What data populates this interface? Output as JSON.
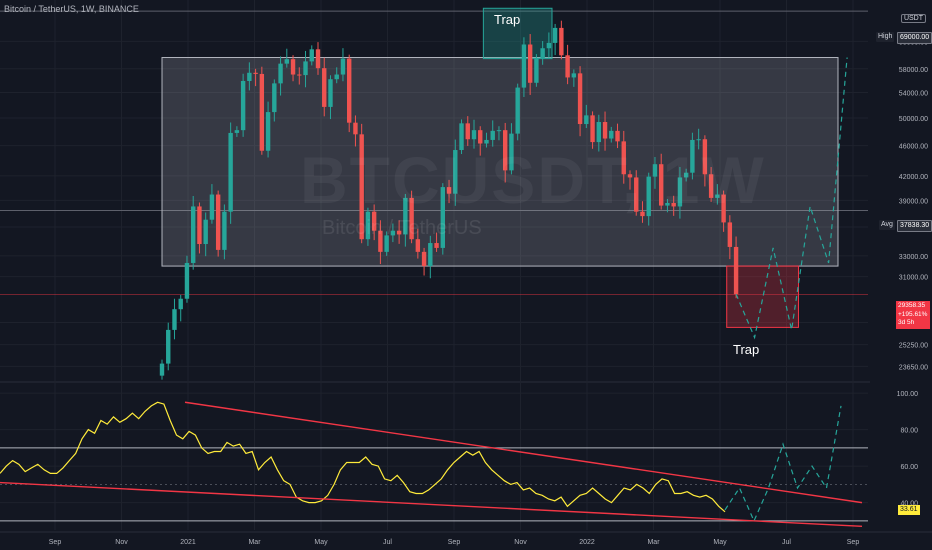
{
  "header": {
    "title": "Bitcoin / TetherUS, 1W, BINANCE",
    "quote_currency": "USDT"
  },
  "watermark": {
    "symbol": "BTCUSDT, 1W",
    "name": "Bitcoin / TetherUS"
  },
  "annotations": {
    "trap_top": "Trap",
    "trap_bottom": "Trap"
  },
  "tags": {
    "high_label": "High",
    "high_value": "69000.00",
    "avg_label": "Avg",
    "avg_value": "37838.30",
    "last_price": "29358.35",
    "change_pct": "+195.61%",
    "countdown": "3d 5h",
    "rsi_value": "33.61"
  },
  "colors": {
    "up": "#26a69a",
    "down": "#ef5350",
    "rsi": "#ffeb3b",
    "trend": "#f23645",
    "background": "#131722",
    "projection": "#26a69a"
  },
  "chart_data": [
    {
      "type": "candlestick",
      "title": "Bitcoin / TetherUS, 1W, BINANCE",
      "x_ticks": [
        "Sep",
        "Nov",
        "2021",
        "Mar",
        "May",
        "Jul",
        "Sep",
        "Nov",
        "2022",
        "Mar",
        "May",
        "Jul",
        "Sep"
      ],
      "price_ticks": [
        63000,
        58000,
        54000,
        50000,
        46000,
        42000,
        39000,
        36000,
        33000,
        31000,
        27000,
        25250,
        23650
      ],
      "ylim": [
        22700,
        70500
      ],
      "high": 69000,
      "average": 37838.3,
      "last_price": 29358.35,
      "close_values": [
        23850,
        26400,
        28100,
        29000,
        32300,
        38300,
        34200,
        36800,
        39700,
        33600,
        37700,
        47800,
        48200,
        55900,
        57300,
        57100,
        45300,
        50900,
        55500,
        58900,
        59700,
        57000,
        56900,
        59300,
        61500,
        58100,
        51700,
        56200,
        57000,
        59800,
        49300,
        47600,
        34700,
        37700,
        35600,
        33400,
        35100,
        35600,
        35200,
        39300,
        34700,
        33400,
        32000,
        34300,
        33800,
        40600,
        39800,
        45400,
        49200,
        46900,
        48200,
        46300,
        46800,
        48100,
        48200,
        42700,
        47700,
        54800,
        62400,
        55600,
        59900,
        61700,
        62700,
        65600,
        60400,
        56500,
        57200,
        49100,
        50400,
        46500,
        49400,
        47000,
        48100,
        46600,
        42200,
        41800,
        37700,
        37200,
        41900,
        43500,
        38400,
        38700,
        38300,
        41800,
        42400,
        46800,
        46900,
        42200,
        39300,
        39700,
        36500,
        33900,
        29400
      ],
      "range_box": {
        "price_low": 32000,
        "price_high": 60000
      },
      "trap_top_box": {
        "price_low": 59800,
        "price_high": 69600
      },
      "trap_bottom_box": {
        "price_low": 26600,
        "price_high": 32000
      },
      "projection_path": [
        29400,
        25800,
        33800,
        26400,
        38300,
        32300,
        60000
      ]
    },
    {
      "type": "line",
      "title": "RSI",
      "name": "RSI",
      "y_ticks": [
        100,
        80,
        60,
        40
      ],
      "levels": [
        70,
        30
      ],
      "ylim": [
        25,
        105
      ],
      "last_value": 33.61,
      "values": [
        56,
        60,
        63,
        61,
        57,
        59,
        61,
        58,
        56,
        56,
        59,
        63,
        67,
        75,
        80,
        78,
        85,
        83,
        87,
        84,
        86,
        89,
        86,
        90,
        93,
        95,
        94,
        85,
        77,
        75,
        79,
        77,
        70,
        67,
        68,
        68,
        73,
        71,
        72,
        67,
        68,
        58,
        62,
        65,
        58,
        52,
        50,
        43,
        41,
        40,
        40,
        41,
        44,
        50,
        58,
        62,
        62,
        62,
        65,
        61,
        60,
        53,
        52,
        55,
        51,
        46,
        45,
        45,
        47,
        50,
        53,
        58,
        62,
        65,
        68,
        66,
        68,
        62,
        58,
        55,
        52,
        50,
        51,
        47,
        48,
        45,
        44,
        42,
        41,
        43,
        38,
        41,
        44,
        45,
        48,
        45,
        42,
        40,
        44,
        48,
        47,
        50,
        48,
        45,
        50,
        53,
        52,
        45,
        45,
        46,
        44,
        43,
        44,
        42,
        38,
        35
      ],
      "trendline_upper": [
        [
          95,
          70
        ],
        [
          69,
          40
        ]
      ],
      "trendline_lower": [
        [
          51,
          28
        ],
        [
          29,
          27
        ]
      ],
      "projection_path": [
        36,
        48,
        30,
        48,
        72,
        48,
        60,
        48,
        93
      ]
    }
  ]
}
